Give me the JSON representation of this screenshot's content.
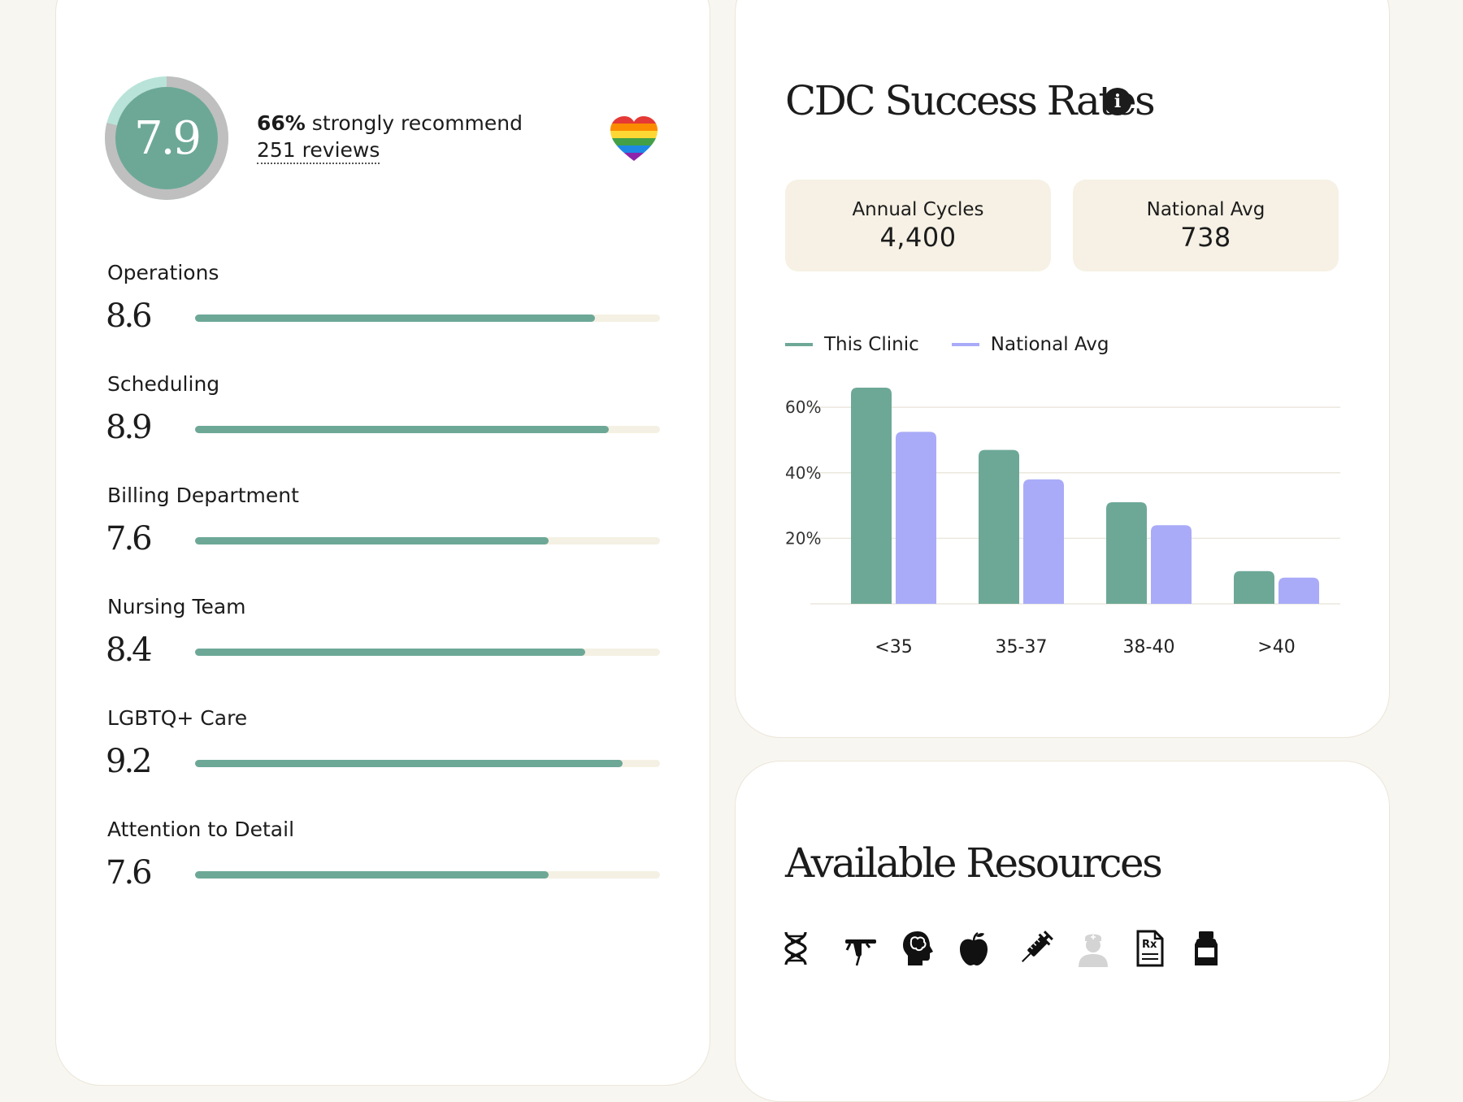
{
  "overall": {
    "score": "7.9",
    "recommend_pct": "66%",
    "recommend_text": "strongly recommend",
    "reviews": "251 reviews",
    "ring_fraction": 0.79
  },
  "ratings": [
    {
      "label": "Operations",
      "score": "8.6",
      "value": 8.6
    },
    {
      "label": "Scheduling",
      "score": "8.9",
      "value": 8.9
    },
    {
      "label": "Billing Department",
      "score": "7.6",
      "value": 7.6
    },
    {
      "label": "Nursing Team",
      "score": "8.4",
      "value": 8.4
    },
    {
      "label": "LGBTQ+ Care",
      "score": "9.2",
      "value": 9.2
    },
    {
      "label": "Attention to Detail",
      "score": "7.6",
      "value": 7.6
    }
  ],
  "cdc": {
    "title": "CDC Success Rates",
    "stats": [
      {
        "label": "Annual Cycles",
        "value": "4,400"
      },
      {
        "label": "National Avg",
        "value": "738"
      }
    ]
  },
  "colors": {
    "accent": "#6da897",
    "national": "#a9abf8",
    "track": "#f4f0e3",
    "stat_bg": "#f6f1e4"
  },
  "chart_data": {
    "type": "bar",
    "categories": [
      "<35",
      "35-37",
      "38-40",
      ">40"
    ],
    "series": [
      {
        "name": "This Clinic",
        "values": [
          66,
          47,
          31,
          10
        ]
      },
      {
        "name": "National Avg",
        "values": [
          52.5,
          38,
          24,
          8
        ]
      }
    ],
    "ylim": [
      0,
      66
    ],
    "yticks": [
      "20%",
      "40%",
      "60%"
    ],
    "ytick_values": [
      20,
      40,
      60
    ],
    "grid": true,
    "legend": "top-left"
  },
  "resources": {
    "title": "Available Resources",
    "icons": [
      "dna-icon",
      "acupuncture-icon",
      "brain-head-icon",
      "apple-icon",
      "syringe-icon",
      "nurse-icon",
      "prescription-icon",
      "medicine-bottle-icon"
    ]
  }
}
